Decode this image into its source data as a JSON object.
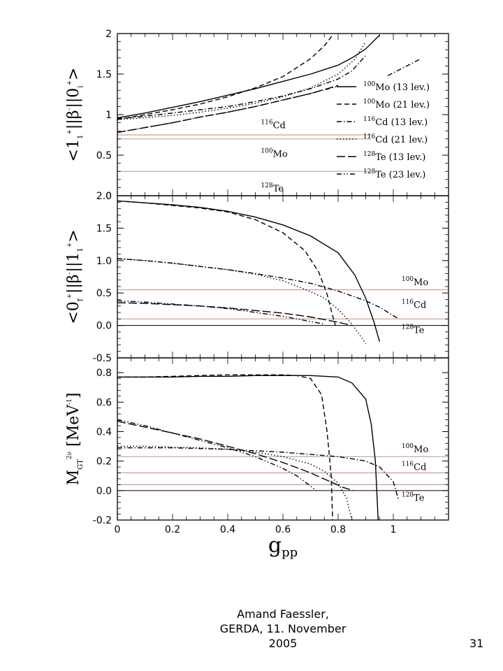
{
  "chart_data": [
    {
      "type": "line",
      "panel": "top",
      "ylabel_parts": {
        "open": "<1",
        "sub1": "1",
        "sup1": "+",
        "mid": "||β",
        "sup2": "-",
        "mid2": "||0",
        "sub2": "i",
        "sup3": "+",
        "close": ">"
      },
      "ylim": [
        0,
        2
      ],
      "yticks": [
        "0",
        "0.5",
        "1",
        "1.5",
        "2"
      ],
      "ytick_values": [
        0,
        0.5,
        1,
        1.5,
        2
      ],
      "series": [
        {
          "name": "100Mo (13 lev.)",
          "sup": "100",
          "elem": "Mo (13 lev.)",
          "dash": "solid",
          "x": [
            0,
            0.1,
            0.2,
            0.3,
            0.4,
            0.5,
            0.6,
            0.7,
            0.8,
            0.85,
            0.9,
            0.95
          ],
          "y": [
            0.96,
            1.02,
            1.09,
            1.16,
            1.24,
            1.32,
            1.41,
            1.5,
            1.61,
            1.7,
            1.81,
            1.98
          ]
        },
        {
          "name": "100Mo (21 lev.)",
          "sup": "100",
          "elem": "Mo (21 lev.)",
          "dash": "dash",
          "x": [
            0,
            0.1,
            0.2,
            0.3,
            0.4,
            0.5,
            0.6,
            0.7,
            0.75,
            0.78
          ],
          "y": [
            0.94,
            1.0,
            1.06,
            1.13,
            1.22,
            1.33,
            1.47,
            1.69,
            1.85,
            1.98
          ]
        },
        {
          "name": "116Cd (13 lev.)",
          "sup": "116",
          "elem": "Cd (13 lev.)",
          "dash": "dashdot",
          "x": [
            0,
            0.1,
            0.2,
            0.3,
            0.4,
            0.5,
            0.6,
            0.7,
            0.8,
            0.85,
            0.9
          ],
          "y": [
            0.95,
            0.98,
            1.02,
            1.06,
            1.1,
            1.16,
            1.23,
            1.32,
            1.44,
            1.54,
            1.73
          ]
        },
        {
          "name": "116Cd (21 lev.)",
          "sup": "116",
          "elem": "Cd (21 lev.)",
          "dash": "dot",
          "x": [
            0,
            0.1,
            0.2,
            0.3,
            0.4,
            0.5,
            0.6,
            0.7,
            0.8,
            0.86,
            0.9
          ],
          "y": [
            0.94,
            0.96,
            0.99,
            1.03,
            1.08,
            1.14,
            1.22,
            1.33,
            1.5,
            1.68,
            1.9
          ]
        },
        {
          "name": "128Te (13 lev.)",
          "sup": "128",
          "elem": "Te (13 lev.)",
          "dash": "longdash",
          "x": [
            0,
            0.1,
            0.2,
            0.3,
            0.4,
            0.5,
            0.6,
            0.7,
            0.8
          ],
          "y": [
            0.78,
            0.84,
            0.9,
            0.97,
            1.03,
            1.1,
            1.18,
            1.26,
            1.36
          ]
        },
        {
          "name": "128Te (23 lev.)",
          "sup": "128",
          "elem": "Te (23 lev.)",
          "dash": "dashdotdot",
          "x": [
            0,
            0.1,
            0.2,
            0.3,
            0.4,
            0.5,
            0.6,
            0.7,
            0.8
          ],
          "y": [
            0.78,
            0.84,
            0.9,
            0.97,
            1.03,
            1.1,
            1.18,
            1.26,
            1.35
          ]
        },
        {
          "name": "128Te (23 lev.) upper",
          "dash": "dashdot",
          "legend": false,
          "x": [
            0.98,
            1.02,
            1.06,
            1.1
          ],
          "y": [
            1.48,
            1.55,
            1.62,
            1.69
          ]
        }
      ],
      "hlines": [
        0.75,
        0.7,
        0.3
      ],
      "annotations": [
        {
          "sup": "116",
          "elem": "Cd",
          "x": 0.52,
          "y": 0.83
        },
        {
          "sup": "100",
          "elem": "Mo",
          "x": 0.52,
          "y": 0.48
        },
        {
          "sup": "128",
          "elem": "Te",
          "x": 0.52,
          "y": 0.05
        }
      ]
    },
    {
      "type": "line",
      "panel": "middle",
      "ylabel_parts": {
        "open": "<0",
        "sub1": "f",
        "sup1": "+",
        "mid": "||β",
        "sup2": "-",
        "mid2": "||1",
        "sub2": "1",
        "sup3": "+",
        "close": ">"
      },
      "ylim": [
        -0.5,
        2.0
      ],
      "yticks": [
        "-0.5",
        "0.0",
        "0.5",
        "1.0",
        "1.5",
        "2.0"
      ],
      "ytick_values": [
        -0.5,
        0,
        0.5,
        1.0,
        1.5,
        2.0
      ],
      "series": [
        {
          "name": "100Mo (13 lev.)",
          "dash": "solid",
          "x": [
            0,
            0.1,
            0.2,
            0.3,
            0.4,
            0.5,
            0.6,
            0.7,
            0.8,
            0.86,
            0.9,
            0.93,
            0.95
          ],
          "y": [
            1.92,
            1.89,
            1.86,
            1.82,
            1.76,
            1.67,
            1.55,
            1.38,
            1.12,
            0.78,
            0.42,
            0.05,
            -0.25
          ]
        },
        {
          "name": "100Mo (21 lev.)",
          "dash": "dash",
          "x": [
            0,
            0.1,
            0.2,
            0.3,
            0.4,
            0.5,
            0.6,
            0.68,
            0.73,
            0.76,
            0.78,
            0.79
          ],
          "y": [
            1.92,
            1.89,
            1.85,
            1.81,
            1.75,
            1.63,
            1.43,
            1.15,
            0.82,
            0.48,
            0.15,
            0.0
          ]
        },
        {
          "name": "116Cd (13 lev.)",
          "dash": "dashdot",
          "x": [
            0,
            0.1,
            0.2,
            0.3,
            0.4,
            0.5,
            0.6,
            0.7,
            0.8,
            0.9,
            0.95,
            1.02
          ],
          "y": [
            1.03,
            1.0,
            0.96,
            0.91,
            0.86,
            0.8,
            0.73,
            0.65,
            0.53,
            0.38,
            0.28,
            0.1
          ]
        },
        {
          "name": "116Cd (21 lev.)",
          "dash": "dot",
          "x": [
            0,
            0.1,
            0.2,
            0.3,
            0.4,
            0.5,
            0.6,
            0.7,
            0.75,
            0.8,
            0.85,
            0.9
          ],
          "y": [
            1.03,
            1.0,
            0.96,
            0.91,
            0.86,
            0.79,
            0.69,
            0.52,
            0.42,
            0.25,
            0.02,
            -0.28
          ]
        },
        {
          "name": "128Te (13 lev.)",
          "dash": "longdash",
          "x": [
            0,
            0.1,
            0.2,
            0.3,
            0.4,
            0.5,
            0.6,
            0.7,
            0.8,
            0.85
          ],
          "y": [
            0.35,
            0.34,
            0.32,
            0.3,
            0.27,
            0.23,
            0.19,
            0.13,
            0.05,
            0.0
          ]
        },
        {
          "name": "128Te (23 lev.)",
          "dash": "dashdotdot",
          "x": [
            0,
            0.1,
            0.2,
            0.3,
            0.4,
            0.5,
            0.6,
            0.7,
            0.75
          ],
          "y": [
            0.38,
            0.36,
            0.33,
            0.3,
            0.26,
            0.2,
            0.14,
            0.06,
            0.02
          ]
        }
      ],
      "hlines": [
        0.55,
        0.1
      ],
      "zero_line": true,
      "annotations": [
        {
          "sup": "100",
          "elem": "Mo",
          "x": 1.03,
          "y": 0.62
        },
        {
          "sup": "116",
          "elem": "Cd",
          "x": 1.03,
          "y": 0.27
        },
        {
          "sup": "128",
          "elem": "Te",
          "x": 1.03,
          "y": -0.12
        }
      ]
    },
    {
      "type": "line",
      "panel": "bottom",
      "ylabel_parts": {
        "open": "M",
        "sub1": "GT",
        "sup1": "2ν",
        "mid": " [MeV",
        "sup2": "-1",
        "mid2": "]",
        "sub2": "",
        "sup3": "",
        "close": ""
      },
      "ylim": [
        -0.2,
        0.9
      ],
      "yticks": [
        "-0.2",
        "0.0",
        "0.2",
        "0.4",
        "0.6",
        "0.8"
      ],
      "ytick_values": [
        -0.2,
        0,
        0.2,
        0.4,
        0.6,
        0.8
      ],
      "xlim": [
        0,
        1.2
      ],
      "xticks": [
        "0",
        "0.2",
        "0.4",
        "0.6",
        "0.8",
        "1"
      ],
      "xtick_values": [
        0,
        0.2,
        0.4,
        0.6,
        0.8,
        1.0
      ],
      "xlabel_main": "g",
      "xlabel_sub": "pp",
      "series": [
        {
          "name": "100Mo (13 lev.)",
          "dash": "solid",
          "x": [
            0,
            0.1,
            0.2,
            0.3,
            0.4,
            0.5,
            0.6,
            0.7,
            0.8,
            0.85,
            0.9,
            0.92,
            0.935,
            0.945
          ],
          "y": [
            0.77,
            0.77,
            0.77,
            0.775,
            0.775,
            0.78,
            0.78,
            0.78,
            0.77,
            0.73,
            0.62,
            0.45,
            0.2,
            -0.2
          ]
        },
        {
          "name": "100Mo (21 lev.)",
          "dash": "dash",
          "x": [
            0,
            0.1,
            0.2,
            0.3,
            0.4,
            0.5,
            0.6,
            0.65,
            0.7,
            0.74,
            0.76,
            0.775,
            0.78
          ],
          "y": [
            0.77,
            0.77,
            0.775,
            0.78,
            0.785,
            0.785,
            0.785,
            0.78,
            0.76,
            0.65,
            0.4,
            0.1,
            -0.2
          ]
        },
        {
          "name": "116Cd (13 lev.)",
          "dash": "dashdot",
          "x": [
            0,
            0.1,
            0.2,
            0.3,
            0.4,
            0.5,
            0.6,
            0.7,
            0.8,
            0.9,
            0.95,
            1.0,
            1.02
          ],
          "y": [
            0.29,
            0.29,
            0.29,
            0.285,
            0.28,
            0.27,
            0.26,
            0.245,
            0.23,
            0.2,
            0.16,
            0.06,
            -0.07
          ]
        },
        {
          "name": "116Cd (21 lev.)",
          "dash": "dot",
          "x": [
            0,
            0.1,
            0.2,
            0.3,
            0.4,
            0.5,
            0.6,
            0.7,
            0.75,
            0.8,
            0.83,
            0.85
          ],
          "y": [
            0.3,
            0.3,
            0.295,
            0.29,
            0.28,
            0.26,
            0.23,
            0.18,
            0.13,
            0.05,
            -0.05,
            -0.2
          ]
        },
        {
          "name": "128Te (13 lev.)",
          "dash": "longdash",
          "x": [
            0,
            0.1,
            0.2,
            0.3,
            0.4,
            0.5,
            0.6,
            0.7,
            0.76,
            0.82,
            0.855
          ],
          "y": [
            0.47,
            0.43,
            0.39,
            0.35,
            0.3,
            0.25,
            0.19,
            0.12,
            0.07,
            0.02,
            0.0
          ]
        },
        {
          "name": "128Te (23 lev.)",
          "dash": "dashdotdot",
          "x": [
            0,
            0.1,
            0.2,
            0.3,
            0.4,
            0.5,
            0.6,
            0.65,
            0.7,
            0.72
          ],
          "y": [
            0.48,
            0.44,
            0.39,
            0.34,
            0.29,
            0.23,
            0.15,
            0.1,
            0.03,
            0.0
          ]
        }
      ],
      "hlines": [
        0.23,
        0.12,
        0.04
      ],
      "zero_line": true,
      "annotations": [
        {
          "sup": "100",
          "elem": "Mo",
          "x": 1.03,
          "y": 0.26
        },
        {
          "sup": "116",
          "elem": "Cd",
          "x": 1.03,
          "y": 0.14
        },
        {
          "sup": "128",
          "elem": "Te",
          "x": 1.03,
          "y": -0.07
        }
      ]
    }
  ],
  "footer": {
    "line1": "Amand Faessler,",
    "line2": "GERDA, 11. November",
    "line3": "2005"
  },
  "page_number": "31",
  "colors": {
    "axes": "#000000",
    "hline": "#c8a08c",
    "curve": "#000000"
  }
}
